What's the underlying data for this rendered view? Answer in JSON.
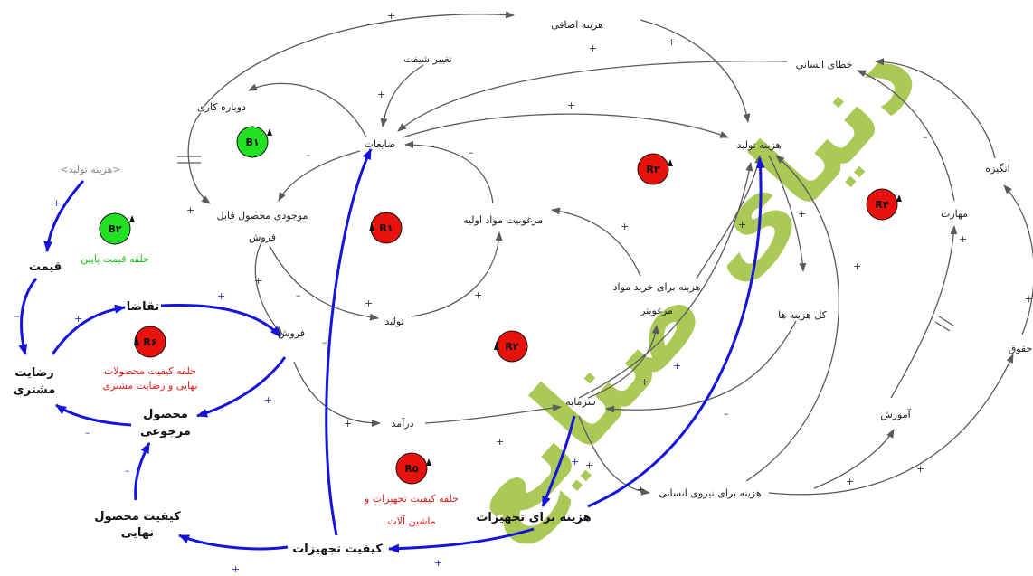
{
  "variables": {
    "extra_cost": "هزینه اضافی",
    "shift_change": "تغییر شیفت",
    "human_error": "خطای انسانی",
    "rework": "دوباره کاری",
    "waste": "ضایعات",
    "production_cost": "هزینه تولید",
    "motivation": "انگیزه",
    "production_cost_shadow": "<هزینه تولید>",
    "inventory_1": "موجودی محصول قابل",
    "inventory_2": "فروش",
    "raw_material_desirability": "مرغوبیت مواد اولیه",
    "skill": "مهارت",
    "price": "قیمت",
    "purchase_cost_1": "هزینه برای خرید مواد",
    "purchase_cost_2": "مرغوبتر",
    "total_cost": "کل هزینه ها",
    "salary": "حقوق",
    "production": "تولید",
    "demand": "تقاضا",
    "sales": "فروش",
    "customer_satisfaction_1": "رضایت",
    "customer_satisfaction_2": "مشتری",
    "returned_product_1": "محصول",
    "returned_product_2": "مرجوعی",
    "revenue": "درآمد",
    "capital": "سرمایه",
    "training": "آموزش",
    "labor_cost": "هزینه برای نیروی انسانی",
    "final_quality_1": "کیفیت محصول",
    "final_quality_2": "نهایی",
    "equipment_quality": "کیفیت تجهیزات",
    "equipment_cost": "هزینه برای تجهیزات"
  },
  "loops": {
    "b1": "B۱",
    "b2": "B۲",
    "r1": "R۱",
    "r2": "R۲",
    "r3": "R۳",
    "r4": "R۴",
    "r5": "R۵",
    "r6": "R۶"
  },
  "loop_captions": {
    "b2": "حلقه قیمت پایین",
    "r6_1": "حلقه کیفیت محصولات",
    "r6_2": "نهایی و رضایت مشتری",
    "r5_1": "حلقه کیفیت تجهیزات و",
    "r5_2": "ماشین آلات"
  },
  "signs": {
    "plus": "+",
    "minus": "–"
  },
  "watermark": "دنیای صنایع",
  "colors": {
    "gray_arrow": "#5a5a5a",
    "blue_arrow": "#1414dc",
    "loop_red": "#e8120c",
    "loop_green": "#22e022",
    "watermark": "#9cc03a"
  }
}
